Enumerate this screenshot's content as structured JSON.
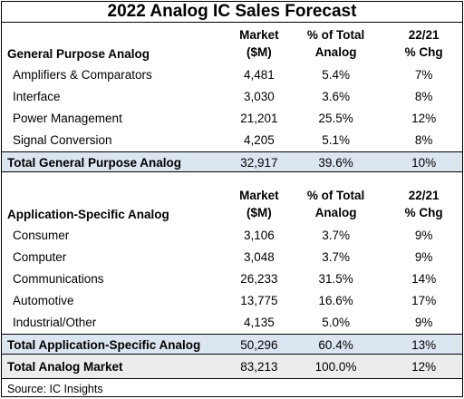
{
  "title": "2022 Analog IC Sales Forecast",
  "columns": {
    "market_line1": "Market",
    "market_line2": "($M)",
    "share_line1": "% of Total",
    "share_line2": "Analog",
    "chg_line1": "22/21",
    "chg_line2": "% Chg"
  },
  "general": {
    "heading": "General Purpose Analog",
    "rows": [
      {
        "label": "Amplifiers & Comparators",
        "market": "4,481",
        "share": "5.4%",
        "chg": "7%"
      },
      {
        "label": "Interface",
        "market": "3,030",
        "share": "3.6%",
        "chg": "8%"
      },
      {
        "label": "Power Management",
        "market": "21,201",
        "share": "25.5%",
        "chg": "12%"
      },
      {
        "label": "Signal Conversion",
        "market": "4,205",
        "share": "5.1%",
        "chg": "8%"
      }
    ],
    "total": {
      "label": "Total General Purpose Analog",
      "market": "32,917",
      "share": "39.6%",
      "chg": "10%"
    }
  },
  "application": {
    "heading": "Application-Specific Analog",
    "rows": [
      {
        "label": "Consumer",
        "market": "3,106",
        "share": "3.7%",
        "chg": "9%"
      },
      {
        "label": "Computer",
        "market": "3,048",
        "share": "3.7%",
        "chg": "9%"
      },
      {
        "label": "Communications",
        "market": "26,233",
        "share": "31.5%",
        "chg": "14%"
      },
      {
        "label": "Automotive",
        "market": "13,775",
        "share": "16.6%",
        "chg": "17%"
      },
      {
        "label": "Industrial/Other",
        "market": "4,135",
        "share": "5.0%",
        "chg": "9%"
      }
    ],
    "total": {
      "label": "Total Application-Specific Analog",
      "market": "50,296",
      "share": "60.4%",
      "chg": "13%"
    }
  },
  "grand_total": {
    "label": "Total Analog Market",
    "market": "83,213",
    "share": "100.0%",
    "chg": "12%"
  },
  "source": "Source:  IC Insights"
}
